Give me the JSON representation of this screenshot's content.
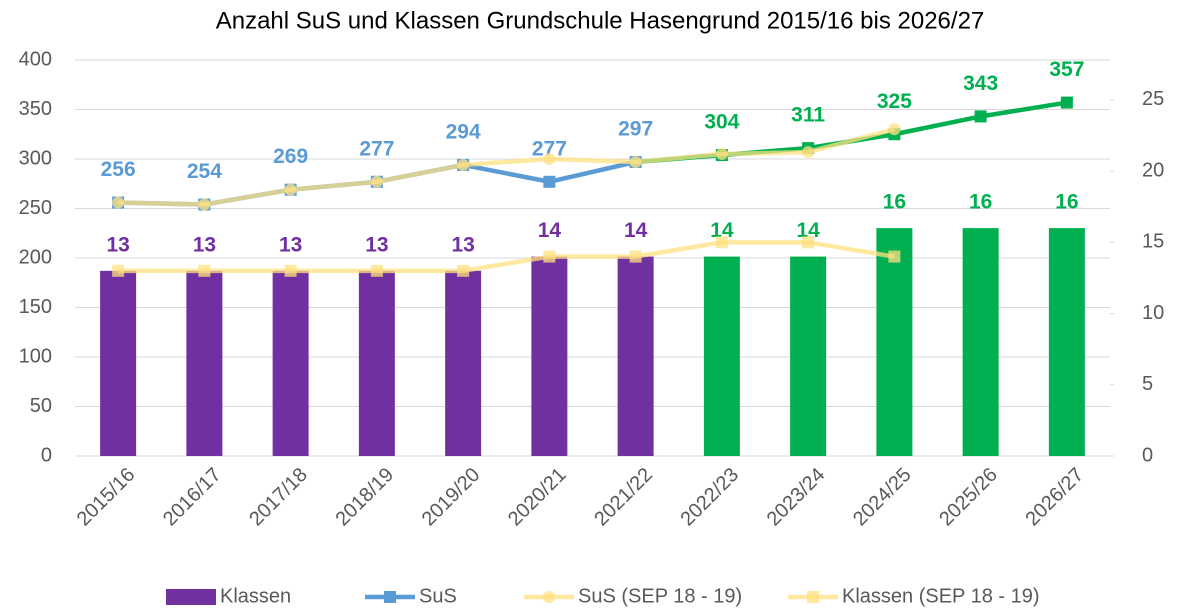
{
  "chart_data": {
    "type": "bar_line",
    "title": "Anzahl SuS und Klassen Grundschule Hasengrund 2015/16 bis 2026/27",
    "categories": [
      "2015/16",
      "2016/17",
      "2017/18",
      "2018/19",
      "2019/20",
      "2020/21",
      "2021/22",
      "2022/23",
      "2023/24",
      "2024/25",
      "2025/26",
      "2026/27"
    ],
    "ylim": [
      0,
      400
    ],
    "yticks": [
      0,
      50,
      100,
      150,
      200,
      250,
      300,
      350,
      400
    ],
    "y2lim": [
      0,
      27.8
    ],
    "y2ticks": [
      0,
      5,
      10,
      15,
      20,
      25
    ],
    "legend": "bottom",
    "series": [
      {
        "name": "Klassen",
        "type": "bar",
        "axis": "y2",
        "color": "#7030a0",
        "point_colors": [
          "#7030a0",
          "#7030a0",
          "#7030a0",
          "#7030a0",
          "#7030a0",
          "#7030a0",
          "#7030a0",
          "#00b050",
          "#00b050",
          "#00b050",
          "#00b050",
          "#00b050"
        ],
        "values": [
          13,
          13,
          13,
          13,
          13,
          14,
          14,
          14,
          14,
          16,
          16,
          16
        ]
      },
      {
        "name": "SuS",
        "type": "line",
        "color": "#5b9bd5",
        "marker": "square",
        "point_colors": [
          "#5b9bd5",
          "#5b9bd5",
          "#5b9bd5",
          "#5b9bd5",
          "#5b9bd5",
          "#5b9bd5",
          "#5b9bd5",
          "#00b050",
          "#00b050",
          "#00b050",
          "#00b050",
          "#00b050"
        ],
        "values": [
          256,
          254,
          269,
          277,
          294,
          277,
          297,
          304,
          311,
          325,
          343,
          357
        ]
      },
      {
        "name": "SuS (SEP 18 - 19)",
        "type": "line",
        "color": "#ffe080",
        "marker": "circle",
        "values": [
          256,
          254,
          269,
          277,
          294,
          300,
          297,
          305,
          307,
          330,
          null,
          null
        ]
      },
      {
        "name": "Klassen  (SEP 18 - 19)",
        "type": "line",
        "axis": "y2",
        "color": "#ffe080",
        "marker": "square",
        "values": [
          13,
          13,
          13,
          13,
          13,
          14,
          14,
          15,
          15,
          14,
          null,
          null
        ]
      }
    ]
  }
}
